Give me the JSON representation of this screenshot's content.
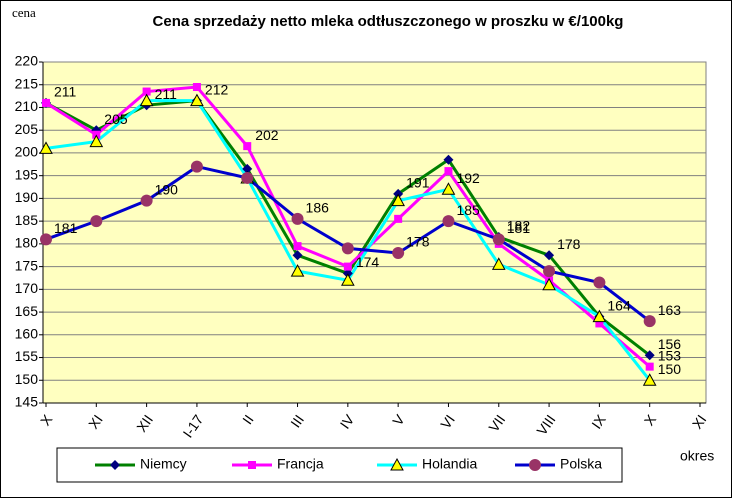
{
  "chart_data": {
    "type": "line",
    "title": "Cena sprzedaży netto mleka odtłuszczonego w proszku w €/100kg",
    "y_label": "cena",
    "x_label": "okres",
    "categories": [
      "X",
      "XI",
      "XII",
      "I-17",
      "II",
      "III",
      "IV",
      "V",
      "VI",
      "VII",
      "VIII",
      "IX",
      "X",
      "XI"
    ],
    "ylim": [
      145,
      220
    ],
    "yticks": [
      145,
      150,
      155,
      160,
      165,
      170,
      175,
      180,
      185,
      190,
      195,
      200,
      205,
      210,
      215,
      220
    ],
    "grid": true,
    "legend": "bottom",
    "series": [
      {
        "name": "Niemcy",
        "color": "#008000",
        "marker": "diamond",
        "marker_color": "#000080",
        "values": [
          211,
          205,
          210.5,
          211.5,
          196.5,
          177.5,
          173.5,
          191,
          198.5,
          181.5,
          177.5,
          164,
          155.5,
          null
        ],
        "value_labels": [
          "211",
          "205",
          "211",
          "212",
          null,
          null,
          "174",
          "191",
          null,
          "182",
          "178",
          null,
          "156",
          null
        ]
      },
      {
        "name": "Francja",
        "color": "#ff00ff",
        "marker": "square",
        "marker_color": "#ff00ff",
        "values": [
          211,
          204,
          213.5,
          214.5,
          201.5,
          179.5,
          175,
          185.5,
          196,
          180,
          172,
          162.5,
          153,
          null
        ],
        "value_labels": [
          null,
          null,
          null,
          null,
          "202",
          null,
          null,
          null,
          null,
          null,
          null,
          null,
          "153",
          null
        ]
      },
      {
        "name": "Holandia",
        "color": "#00ffff",
        "marker": "triangle",
        "marker_color": "#ffff00",
        "values": [
          201,
          202.5,
          211.5,
          211.5,
          194.5,
          174,
          172,
          189.5,
          192,
          175.5,
          171,
          164,
          150,
          null
        ],
        "value_labels": [
          null,
          null,
          null,
          null,
          null,
          null,
          null,
          null,
          "192",
          null,
          null,
          "164",
          "150",
          null
        ]
      },
      {
        "name": "Polska",
        "color": "#0000cc",
        "marker": "circle",
        "marker_color": "#993366",
        "values": [
          181,
          185,
          189.5,
          197,
          194.5,
          185.5,
          179,
          178,
          185,
          181,
          174,
          171.5,
          163,
          null
        ],
        "value_labels": [
          "181",
          null,
          "190",
          null,
          null,
          "186",
          null,
          "178",
          "185",
          "181",
          null,
          null,
          "163",
          null
        ]
      }
    ]
  }
}
